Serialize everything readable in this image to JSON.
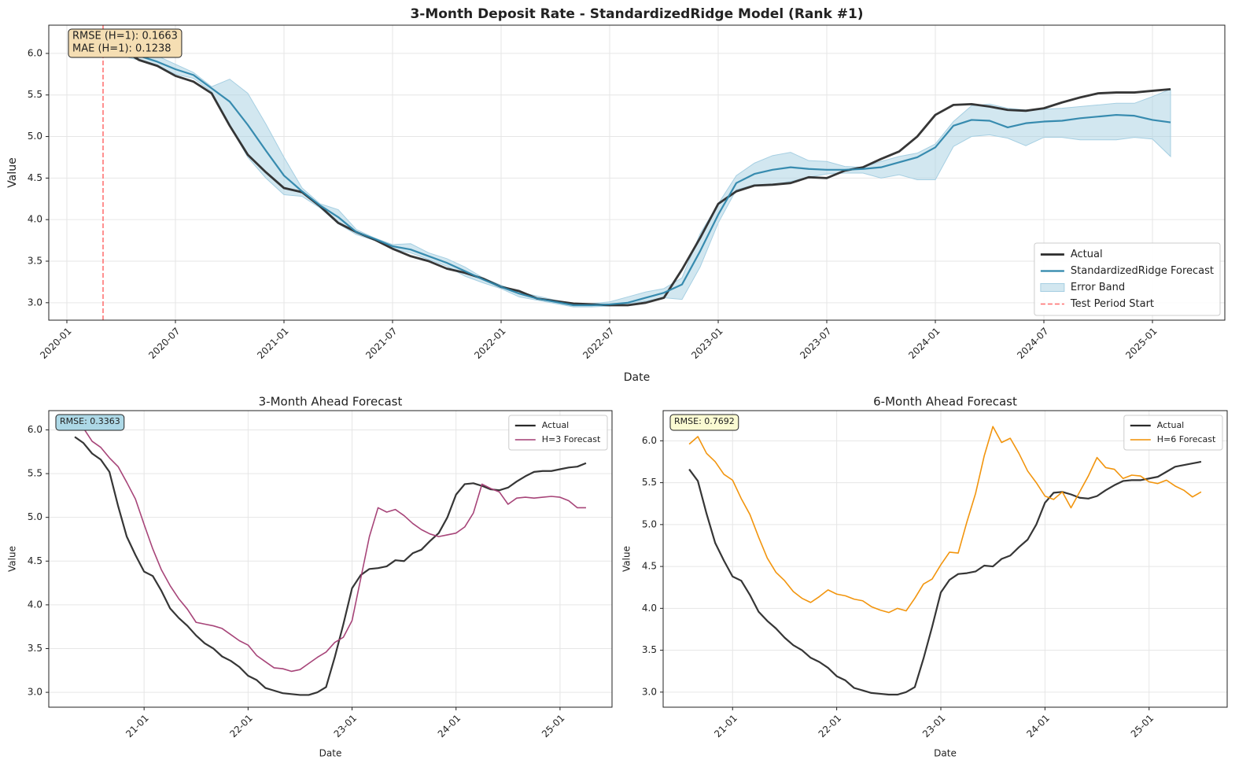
{
  "chart_data": [
    {
      "type": "line",
      "title": "3-Month Deposit Rate - StandardizedRidge Model (Rank #1)",
      "xlabel": "Date",
      "ylabel": "Value",
      "x": [
        "2020-03",
        "2020-04",
        "2020-05",
        "2020-06",
        "2020-07",
        "2020-08",
        "2020-09",
        "2020-10",
        "2020-11",
        "2020-12",
        "2021-01",
        "2021-02",
        "2021-03",
        "2021-04",
        "2021-05",
        "2021-06",
        "2021-07",
        "2021-08",
        "2021-09",
        "2021-10",
        "2021-11",
        "2021-12",
        "2022-01",
        "2022-02",
        "2022-03",
        "2022-04",
        "2022-05",
        "2022-06",
        "2022-07",
        "2022-08",
        "2022-09",
        "2022-10",
        "2022-11",
        "2022-12",
        "2023-01",
        "2023-02",
        "2023-03",
        "2023-04",
        "2023-05",
        "2023-06",
        "2023-07",
        "2023-08",
        "2023-09",
        "2023-10",
        "2023-11",
        "2023-12",
        "2024-01",
        "2024-02",
        "2024-03",
        "2024-04",
        "2024-05",
        "2024-06",
        "2024-07",
        "2024-08",
        "2024-09",
        "2024-10",
        "2024-11",
        "2024-12",
        "2025-01",
        "2025-02"
      ],
      "xlim": [
        "2019-12",
        "2025-05"
      ],
      "xticks": [
        "2020-01",
        "2020-07",
        "2021-01",
        "2021-07",
        "2022-01",
        "2022-07",
        "2023-01",
        "2023-07",
        "2024-01",
        "2024-07",
        "2025-01"
      ],
      "ylim": [
        2.79,
        6.34
      ],
      "yticks": [
        {
          "value": 3,
          "label": "3.0"
        },
        3.5,
        {
          "value": 4,
          "label": "4.0"
        },
        4.5,
        {
          "value": 5,
          "label": "5.0"
        },
        5.5,
        {
          "value": 6,
          "label": "6.0"
        }
      ],
      "grid": true,
      "legend": "lower right",
      "series": [
        {
          "name": "Actual",
          "color": "#2b2b2b",
          "values": [
            6.12,
            6.05,
            5.92,
            5.85,
            5.73,
            5.66,
            5.52,
            5.13,
            4.78,
            4.57,
            4.38,
            4.33,
            4.16,
            3.96,
            3.85,
            3.76,
            3.65,
            3.56,
            3.5,
            3.41,
            3.36,
            3.29,
            3.19,
            3.14,
            3.05,
            3.02,
            2.99,
            2.98,
            2.97,
            2.97,
            3.0,
            3.06,
            3.4,
            3.78,
            4.19,
            4.34,
            4.41,
            4.42,
            4.44,
            4.51,
            4.5,
            4.59,
            4.63,
            4.73,
            4.82,
            5.0,
            5.26,
            5.38,
            5.39,
            5.36,
            5.32,
            5.31,
            5.34,
            5.41,
            5.47,
            5.52,
            5.53,
            5.53,
            5.55,
            5.57
          ]
        },
        {
          "name": "StandardizedRidge Forecast",
          "color": "#2e86ab",
          "values": [
            6.1,
            6.02,
            5.97,
            5.9,
            5.81,
            5.74,
            5.58,
            5.42,
            5.14,
            4.83,
            4.53,
            4.34,
            4.17,
            4.03,
            3.85,
            3.77,
            3.68,
            3.64,
            3.56,
            3.48,
            3.38,
            3.28,
            3.19,
            3.11,
            3.05,
            3.01,
            2.97,
            2.97,
            2.98,
            3.0,
            3.06,
            3.12,
            3.22,
            3.62,
            4.06,
            4.44,
            4.55,
            4.6,
            4.63,
            4.61,
            4.6,
            4.6,
            4.61,
            4.63,
            4.69,
            4.75,
            4.87,
            5.13,
            5.2,
            5.19,
            5.11,
            5.16,
            5.18,
            5.19,
            5.22,
            5.24,
            5.26,
            5.25,
            5.2,
            5.17
          ]
        }
      ],
      "band": {
        "name": "Error Band",
        "color": "#a6cfe2",
        "upper": [
          6.15,
          6.08,
          6.04,
          5.97,
          5.87,
          5.77,
          5.6,
          5.69,
          5.52,
          5.15,
          4.75,
          4.38,
          4.19,
          4.12,
          3.88,
          3.78,
          3.7,
          3.71,
          3.6,
          3.53,
          3.43,
          3.3,
          3.21,
          3.13,
          3.08,
          3.03,
          2.99,
          2.99,
          3.01,
          3.07,
          3.13,
          3.17,
          3.3,
          3.83,
          4.19,
          4.53,
          4.68,
          4.77,
          4.81,
          4.71,
          4.7,
          4.64,
          4.63,
          4.7,
          4.76,
          4.8,
          4.91,
          5.18,
          5.37,
          5.39,
          5.34,
          5.32,
          5.33,
          5.34,
          5.36,
          5.38,
          5.4,
          5.4,
          5.48,
          5.57
        ],
        "lower": [
          6.05,
          5.97,
          5.92,
          5.85,
          5.75,
          5.7,
          5.54,
          5.13,
          4.75,
          4.5,
          4.3,
          4.28,
          4.14,
          3.95,
          3.82,
          3.75,
          3.65,
          3.6,
          3.52,
          3.44,
          3.32,
          3.24,
          3.17,
          3.07,
          3.03,
          2.99,
          2.95,
          2.95,
          2.96,
          2.99,
          3.02,
          3.06,
          3.04,
          3.43,
          3.96,
          4.36,
          4.42,
          4.42,
          4.46,
          4.51,
          4.55,
          4.56,
          4.56,
          4.5,
          4.54,
          4.48,
          4.48,
          4.88,
          5.0,
          5.02,
          4.98,
          4.89,
          4.99,
          4.99,
          4.96,
          4.96,
          4.96,
          4.99,
          4.97,
          4.76
        ]
      },
      "vline": {
        "name": "Test Period Start",
        "color": "#ff6b6b",
        "x": "2020-03"
      },
      "annotations": [
        "RMSE (H=1): 0.1663",
        "MAE (H=1): 0.1238"
      ],
      "annotation_box_color": "#f5deb3"
    },
    {
      "type": "line",
      "title": "3-Month Ahead Forecast",
      "xlabel": "Date",
      "ylabel": "Value",
      "x": [
        "20-05",
        "20-06",
        "20-07",
        "20-08",
        "20-09",
        "20-10",
        "20-11",
        "20-12",
        "21-01",
        "21-02",
        "21-03",
        "21-04",
        "21-05",
        "21-06",
        "21-07",
        "21-08",
        "21-09",
        "21-10",
        "21-11",
        "21-12",
        "22-01",
        "22-02",
        "22-03",
        "22-04",
        "22-05",
        "22-06",
        "22-07",
        "22-08",
        "22-09",
        "22-10",
        "22-11",
        "22-12",
        "23-01",
        "23-02",
        "23-03",
        "23-04",
        "23-05",
        "23-06",
        "23-07",
        "23-08",
        "23-09",
        "23-10",
        "23-11",
        "23-12",
        "24-01",
        "24-02",
        "24-03",
        "24-04",
        "24-05",
        "24-06",
        "24-07",
        "24-08",
        "24-09",
        "24-10",
        "24-11",
        "24-12",
        "25-01",
        "25-02",
        "25-03",
        "25-04"
      ],
      "xlim": [
        "20-02",
        "25-07"
      ],
      "xticks": [
        "21-01",
        "22-01",
        "23-01",
        "24-01",
        "25-01"
      ],
      "ylim": [
        2.83,
        6.22
      ],
      "yticks": [
        {
          "value": 3,
          "label": "3.0"
        },
        3.5,
        {
          "value": 4,
          "label": "4.0"
        },
        4.5,
        {
          "value": 5,
          "label": "5.0"
        },
        5.5,
        {
          "value": 6,
          "label": "6.0"
        }
      ],
      "grid": true,
      "legend": "upper right",
      "series": [
        {
          "name": "Actual",
          "color": "#2b2b2b",
          "values": [
            5.92,
            5.85,
            5.73,
            5.66,
            5.52,
            5.13,
            4.78,
            4.57,
            4.38,
            4.33,
            4.16,
            3.96,
            3.85,
            3.76,
            3.65,
            3.56,
            3.5,
            3.41,
            3.36,
            3.29,
            3.19,
            3.14,
            3.05,
            3.02,
            2.99,
            2.98,
            2.97,
            2.97,
            3.0,
            3.06,
            3.4,
            3.78,
            4.19,
            4.34,
            4.41,
            4.42,
            4.44,
            4.51,
            4.5,
            4.59,
            4.63,
            4.73,
            4.82,
            5.0,
            5.26,
            5.38,
            5.39,
            5.36,
            5.32,
            5.31,
            5.34,
            5.41,
            5.47,
            5.52,
            5.53,
            5.53,
            5.55,
            5.57,
            5.58,
            5.62
          ]
        },
        {
          "name": "H=3 Forecast",
          "color": "#a23b72",
          "values": [
            6.12,
            6.02,
            5.87,
            5.8,
            5.68,
            5.58,
            5.4,
            5.21,
            4.92,
            4.64,
            4.4,
            4.22,
            4.07,
            3.95,
            3.8,
            3.78,
            3.76,
            3.73,
            3.66,
            3.59,
            3.54,
            3.42,
            3.35,
            3.28,
            3.27,
            3.24,
            3.26,
            3.33,
            3.4,
            3.46,
            3.57,
            3.63,
            3.82,
            4.3,
            4.78,
            5.11,
            5.06,
            5.09,
            5.02,
            4.93,
            4.86,
            4.81,
            4.78,
            4.8,
            4.82,
            4.89,
            5.05,
            5.38,
            5.33,
            5.29,
            5.15,
            5.22,
            5.23,
            5.22,
            5.23,
            5.24,
            5.23,
            5.19,
            5.11,
            5.11
          ]
        }
      ],
      "annotations": [
        "RMSE: 0.3363"
      ],
      "annotation_box_color": "#add8e6"
    },
    {
      "type": "line",
      "title": "6-Month Ahead Forecast",
      "xlabel": "Date",
      "ylabel": "Value",
      "x": [
        "20-08",
        "20-09",
        "20-10",
        "20-11",
        "20-12",
        "21-01",
        "21-02",
        "21-03",
        "21-04",
        "21-05",
        "21-06",
        "21-07",
        "21-08",
        "21-09",
        "21-10",
        "21-11",
        "21-12",
        "22-01",
        "22-02",
        "22-03",
        "22-04",
        "22-05",
        "22-06",
        "22-07",
        "22-08",
        "22-09",
        "22-10",
        "22-11",
        "22-12",
        "23-01",
        "23-02",
        "23-03",
        "23-04",
        "23-05",
        "23-06",
        "23-07",
        "23-08",
        "23-09",
        "23-10",
        "23-11",
        "23-12",
        "24-01",
        "24-02",
        "24-03",
        "24-04",
        "24-05",
        "24-06",
        "24-07",
        "24-08",
        "24-09",
        "24-10",
        "24-11",
        "24-12",
        "25-01",
        "25-02",
        "25-03",
        "25-04",
        "25-05",
        "25-06",
        "25-07"
      ],
      "xlim": [
        "20-05",
        "25-10"
      ],
      "xticks": [
        "21-01",
        "22-01",
        "23-01",
        "24-01",
        "25-01"
      ],
      "ylim": [
        2.82,
        6.36
      ],
      "yticks": [
        {
          "value": 3,
          "label": "3.0"
        },
        3.5,
        {
          "value": 4,
          "label": "4.0"
        },
        4.5,
        {
          "value": 5,
          "label": "5.0"
        },
        5.5,
        {
          "value": 6,
          "label": "6.0"
        }
      ],
      "grid": true,
      "legend": "upper right",
      "series": [
        {
          "name": "Actual",
          "color": "#2b2b2b",
          "values": [
            5.66,
            5.52,
            5.13,
            4.78,
            4.57,
            4.38,
            4.33,
            4.16,
            3.96,
            3.85,
            3.76,
            3.65,
            3.56,
            3.5,
            3.41,
            3.36,
            3.29,
            3.19,
            3.14,
            3.05,
            3.02,
            2.99,
            2.98,
            2.97,
            2.97,
            3.0,
            3.06,
            3.4,
            3.78,
            4.19,
            4.34,
            4.41,
            4.42,
            4.44,
            4.51,
            4.5,
            4.59,
            4.63,
            4.73,
            4.82,
            5.0,
            5.26,
            5.38,
            5.39,
            5.36,
            5.32,
            5.31,
            5.34,
            5.41,
            5.47,
            5.52,
            5.53,
            5.53,
            5.55,
            5.57,
            5.63,
            5.69,
            5.71,
            5.73,
            5.75
          ]
        },
        {
          "name": "H=6 Forecast",
          "color": "#f18f01",
          "values": [
            5.96,
            6.05,
            5.85,
            5.75,
            5.6,
            5.53,
            5.31,
            5.12,
            4.85,
            4.6,
            4.43,
            4.33,
            4.2,
            4.12,
            4.07,
            4.14,
            4.22,
            4.17,
            4.15,
            4.11,
            4.09,
            4.02,
            3.98,
            3.95,
            4.0,
            3.97,
            4.12,
            4.29,
            4.35,
            4.52,
            4.67,
            4.66,
            5.03,
            5.37,
            5.82,
            6.17,
            5.98,
            6.03,
            5.85,
            5.64,
            5.5,
            5.34,
            5.3,
            5.39,
            5.2,
            5.39,
            5.58,
            5.8,
            5.68,
            5.66,
            5.55,
            5.59,
            5.58,
            5.51,
            5.49,
            5.53,
            5.46,
            5.41,
            5.33,
            5.39
          ]
        }
      ],
      "annotations": [
        "RMSE: 0.7692"
      ],
      "annotation_box_color": "#fafad2"
    }
  ]
}
